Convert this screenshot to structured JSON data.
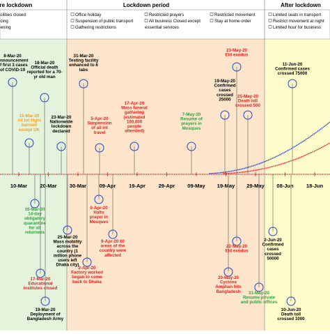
{
  "periods": [
    {
      "title": "fore lockdown",
      "items": [
        "acilities closed",
        "ncing",
        "eening"
      ]
    },
    {
      "title": "Lockdown period",
      "items": [
        "Office holiday",
        "Suspension of public transport",
        "Gathering restrictions",
        "Restricted prayers",
        "All business Closed except",
        "essential services",
        "Restricted movement",
        "Stay at home order"
      ]
    },
    {
      "title": "After lockdown",
      "items": [
        "Limited seats in transport",
        "Restrict movement at night",
        "Limited hour for business"
      ]
    }
  ],
  "dates": [
    "10-Mar",
    "20-Mar",
    "30-Mar",
    "09-Apr",
    "19-Apr",
    "29-Apr",
    "09-May",
    "19-May",
    "29-May",
    "08-Jun",
    "18-Jun"
  ],
  "events": [
    {
      "lines": [
        "8-Mar-20",
        "Announcement",
        "of first 3 cases",
        "of COVID-19"
      ],
      "color": "#000000"
    },
    {
      "lines": [
        "18-Mar-20",
        "Official death",
        "reported for a 70-",
        "yr old man"
      ],
      "color": "#000000"
    },
    {
      "lines": [
        "15-Mar-20",
        "All int flight",
        "banned",
        "except UK"
      ],
      "color": "#f4a020"
    },
    {
      "lines": [
        "23-Mar-20",
        "Nationwide",
        "lockdown",
        "declared"
      ],
      "color": "#000000"
    },
    {
      "lines": [
        "31-Mar-20",
        "Testing facility",
        "enhanced to 6",
        "labs"
      ],
      "color": "#000000"
    },
    {
      "lines": [
        "5-Apr-20",
        "Suspension",
        "of all int",
        "travel"
      ],
      "color": "#e02020"
    },
    {
      "lines": [
        "17-Apr-20",
        "Mass funeral",
        "gathering",
        "(estimated",
        "100,000",
        "people",
        "attended)"
      ],
      "color": "#e02020"
    },
    {
      "lines": [
        "7-May-20",
        "Resume of",
        "prayers in",
        "Mosques"
      ],
      "color": "#30a040"
    },
    {
      "lines": [
        "19-May-20",
        "Confirmed",
        "cases",
        "crossed",
        "25000"
      ],
      "color": "#000000"
    },
    {
      "lines": [
        "23-May-20",
        "Eid exodus"
      ],
      "color": "#e02020"
    },
    {
      "lines": [
        "25-May-20",
        "Death toll",
        "crossed 500"
      ],
      "color": "#e02020"
    },
    {
      "lines": [
        "11-Jun-20",
        "Confirmed cases",
        "crossed 75000"
      ],
      "color": "#000000"
    },
    {
      "lines": [
        "15-Mar-20",
        "14-day",
        "obligatory",
        "quarantine",
        "for all",
        "returnees"
      ],
      "color": "#30a040"
    },
    {
      "lines": [
        "17-Mar-20",
        "Educational",
        "institutes closed"
      ],
      "color": "#e02020"
    },
    {
      "lines": [
        "19-Mar-20",
        "Deployment of",
        "Bangladesh Army"
      ],
      "color": "#000000"
    },
    {
      "lines": [
        "25-Mar-20",
        "Mass mobility",
        "across the",
        "country (1",
        "million phone",
        "users left",
        "Dhaka city)"
      ],
      "color": "#000000"
    },
    {
      "lines": [
        "2-Apr-20",
        "Factory worked",
        "began to come",
        "back to Dhaka"
      ],
      "color": "#e02020"
    },
    {
      "lines": [
        "6-Apr-20",
        "Halts",
        "prayer in",
        "Mosques"
      ],
      "color": "#e02020"
    },
    {
      "lines": [
        "9-Apr-20 60",
        "areas of the",
        "country were",
        "affected"
      ],
      "color": "#e02020"
    },
    {
      "lines": [
        "22-May-20",
        "Eid exodus"
      ],
      "color": "#e02020"
    },
    {
      "lines": [
        "20-May-20",
        "Cyclone",
        "Amphan hits",
        "Bangladesh"
      ],
      "color": "#e02020"
    },
    {
      "lines": [
        "31-May-20",
        "Resume private",
        "and public offices"
      ],
      "color": "#30a040"
    },
    {
      "lines": [
        "2-Jun-20",
        "Confirmed",
        "cases",
        "crossed",
        "50000"
      ],
      "color": "#000000"
    },
    {
      "lines": [
        "10-Jun-20",
        "Death toll",
        "crossed 1000"
      ],
      "color": "#000000"
    }
  ]
}
